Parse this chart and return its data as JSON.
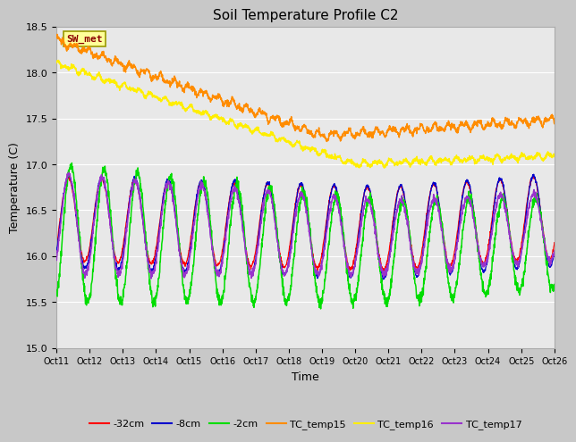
{
  "title": "Soil Temperature Profile C2",
  "xlabel": "Time",
  "ylabel": "Temperature (C)",
  "ylim": [
    15.0,
    18.5
  ],
  "xlim": [
    0,
    15
  ],
  "x_tick_labels": [
    "Oct 11",
    "Oct 12",
    "Oct 13",
    "Oct 14",
    "Oct 15",
    "Oct 16",
    "Oct 17",
    "Oct 18",
    "Oct 19",
    "Oct 20",
    "Oct 21",
    "Oct 22",
    "Oct 23",
    "Oct 24",
    "Oct 25",
    "Oct 26"
  ],
  "legend_labels": [
    "-32cm",
    "-8cm",
    "-2cm",
    "TC_temp15",
    "TC_temp16",
    "TC_temp17"
  ],
  "legend_colors": [
    "#ff0000",
    "#0000cc",
    "#00dd00",
    "#ff8c00",
    "#ffee00",
    "#9933cc"
  ],
  "line_colors": {
    "TC_temp15": "#ff8c00",
    "TC_temp16": "#ffee00",
    "TC_temp17": "#9933cc",
    "depth_32": "#ff0000",
    "depth_8": "#0000cc",
    "depth_2": "#00dd00"
  },
  "annotation_text": "SW_met",
  "annotation_color": "#8b0000",
  "annotation_bg": "#ffff99",
  "annotation_border": "#999900",
  "background_color": "#c8c8c8",
  "plot_bg": "#e8e8e8",
  "grid_color": "#ffffff",
  "title_fontsize": 11,
  "yticks": [
    15.0,
    15.5,
    16.0,
    16.5,
    17.0,
    17.5,
    18.0,
    18.5
  ]
}
